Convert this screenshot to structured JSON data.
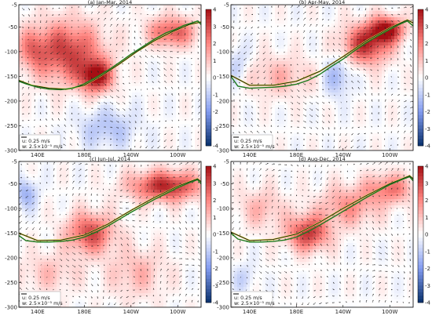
{
  "chart_data": [
    {
      "type": "heatmap",
      "panel_label": "(a)",
      "title": "(a) Jan-Mar, 2014",
      "thermocline_depth": [
        [
          124,
          -160
        ],
        [
          130,
          -165
        ],
        [
          140,
          -172
        ],
        [
          150,
          -176
        ],
        [
          160,
          -177
        ],
        [
          170,
          -174
        ],
        [
          180,
          -165
        ],
        [
          190,
          -152
        ],
        [
          200,
          -138
        ],
        [
          210,
          -122
        ],
        [
          220,
          -105
        ],
        [
          230,
          -90
        ],
        [
          240,
          -75
        ],
        [
          250,
          -62
        ],
        [
          258,
          -55
        ],
        [
          265,
          -47
        ],
        [
          272,
          -42
        ],
        [
          277,
          -38
        ],
        [
          280,
          -45
        ]
      ],
      "isotherm_depth": [
        [
          124,
          -158
        ],
        [
          135,
          -168
        ],
        [
          150,
          -174
        ],
        [
          165,
          -176
        ],
        [
          180,
          -168
        ],
        [
          195,
          -148
        ],
        [
          210,
          -125
        ],
        [
          225,
          -100
        ],
        [
          240,
          -78
        ],
        [
          255,
          -60
        ],
        [
          270,
          -45
        ],
        [
          280,
          -40
        ]
      ],
      "anomaly_centers": [
        [
          165,
          -100,
          3.2,
          30,
          60
        ],
        [
          190,
          -150,
          3.8,
          14,
          32
        ],
        [
          255,
          -60,
          2.8,
          20,
          30
        ],
        [
          200,
          -255,
          -1.2,
          25,
          40
        ],
        [
          135,
          -95,
          1.5,
          12,
          40
        ]
      ]
    },
    {
      "type": "heatmap",
      "panel_label": "(b)",
      "title": "(b) Apr-May, 2014",
      "thermocline_depth": [
        [
          124,
          -150
        ],
        [
          130,
          -170
        ],
        [
          140,
          -174
        ],
        [
          150,
          -173
        ],
        [
          160,
          -172
        ],
        [
          170,
          -170
        ],
        [
          180,
          -166
        ],
        [
          190,
          -158
        ],
        [
          200,
          -146
        ],
        [
          210,
          -130
        ],
        [
          220,
          -115
        ],
        [
          230,
          -98
        ],
        [
          240,
          -82
        ],
        [
          250,
          -68
        ],
        [
          260,
          -55
        ],
        [
          268,
          -45
        ],
        [
          275,
          -38
        ],
        [
          280,
          -48
        ]
      ],
      "isotherm_depth": [
        [
          124,
          -148
        ],
        [
          140,
          -168
        ],
        [
          160,
          -168
        ],
        [
          180,
          -160
        ],
        [
          200,
          -140
        ],
        [
          220,
          -110
        ],
        [
          240,
          -78
        ],
        [
          260,
          -52
        ],
        [
          275,
          -36
        ],
        [
          280,
          -42
        ]
      ],
      "anomaly_centers": [
        [
          240,
          -85,
          3.5,
          20,
          40
        ],
        [
          258,
          -55,
          3.8,
          14,
          25
        ],
        [
          165,
          -150,
          1.2,
          30,
          40
        ],
        [
          215,
          -150,
          -1.5,
          12,
          40
        ],
        [
          130,
          -130,
          -1.0,
          10,
          40
        ]
      ]
    },
    {
      "type": "heatmap",
      "panel_label": "(c)",
      "title": "(c) Jun-Jul, 2014",
      "thermocline_depth": [
        [
          124,
          -155
        ],
        [
          130,
          -165
        ],
        [
          140,
          -168
        ],
        [
          150,
          -168
        ],
        [
          160,
          -167
        ],
        [
          170,
          -164
        ],
        [
          180,
          -158
        ],
        [
          190,
          -148
        ],
        [
          200,
          -136
        ],
        [
          210,
          -122
        ],
        [
          220,
          -108
        ],
        [
          230,
          -95
        ],
        [
          240,
          -82
        ],
        [
          250,
          -70
        ],
        [
          260,
          -58
        ],
        [
          270,
          -48
        ],
        [
          277,
          -42
        ],
        [
          280,
          -50
        ]
      ],
      "isotherm_depth": [
        [
          124,
          -150
        ],
        [
          140,
          -165
        ],
        [
          160,
          -164
        ],
        [
          180,
          -154
        ],
        [
          200,
          -132
        ],
        [
          220,
          -104
        ],
        [
          240,
          -78
        ],
        [
          260,
          -55
        ],
        [
          277,
          -40
        ],
        [
          280,
          -46
        ]
      ],
      "anomaly_centers": [
        [
          185,
          -150,
          3.0,
          20,
          40
        ],
        [
          250,
          -55,
          3.6,
          30,
          30
        ],
        [
          150,
          -230,
          1.0,
          25,
          40
        ],
        [
          130,
          -70,
          -1.5,
          10,
          30
        ],
        [
          225,
          -230,
          1.2,
          25,
          50
        ]
      ]
    },
    {
      "type": "heatmap",
      "panel_label": "(d)",
      "title": "(d) Aug-Dec, 2014",
      "thermocline_depth": [
        [
          124,
          -150
        ],
        [
          130,
          -162
        ],
        [
          140,
          -168
        ],
        [
          150,
          -168
        ],
        [
          160,
          -167
        ],
        [
          170,
          -164
        ],
        [
          180,
          -158
        ],
        [
          190,
          -147
        ],
        [
          200,
          -134
        ],
        [
          210,
          -120
        ],
        [
          220,
          -106
        ],
        [
          230,
          -92
        ],
        [
          240,
          -78
        ],
        [
          250,
          -65
        ],
        [
          260,
          -52
        ],
        [
          270,
          -42
        ],
        [
          277,
          -36
        ],
        [
          280,
          -44
        ]
      ],
      "isotherm_depth": [
        [
          124,
          -148
        ],
        [
          140,
          -165
        ],
        [
          160,
          -163
        ],
        [
          180,
          -152
        ],
        [
          200,
          -128
        ],
        [
          220,
          -100
        ],
        [
          240,
          -74
        ],
        [
          260,
          -50
        ],
        [
          277,
          -34
        ],
        [
          280,
          -40
        ]
      ],
      "anomaly_centers": [
        [
          190,
          -150,
          3.3,
          18,
          35
        ],
        [
          225,
          -95,
          1.8,
          25,
          40
        ],
        [
          260,
          -60,
          2.2,
          20,
          30
        ],
        [
          150,
          -100,
          1.2,
          20,
          40
        ],
        [
          135,
          -240,
          -0.8,
          10,
          30
        ]
      ]
    }
  ],
  "axes": {
    "y_ticks": [
      -5,
      -50,
      -100,
      -150,
      -200,
      -250,
      -300
    ],
    "x_ticks": [
      {
        "lon": 140,
        "label": "140E"
      },
      {
        "lon": 180,
        "label": "180E"
      },
      {
        "lon": 220,
        "label": "140W"
      },
      {
        "lon": 260,
        "label": "100W"
      }
    ],
    "xlim": [
      124,
      280
    ],
    "ylim": [
      -300,
      -5
    ]
  },
  "colorbar": {
    "ticks": [
      4,
      3,
      2,
      1,
      0,
      -1,
      -2,
      -3,
      -4
    ],
    "range": [
      -4,
      4
    ],
    "colors": {
      "max": "#a50f15",
      "mid": "#ffffff",
      "min": "#08306b"
    }
  },
  "vector_legend": {
    "u_label": "u: 0.25 m/s",
    "w_label": "w: 2.5×10⁻⁵ m/s"
  },
  "line_colors": {
    "thermocline": "#1d7a1d",
    "isotherm": "#111111",
    "highlight": "#e8e050"
  }
}
